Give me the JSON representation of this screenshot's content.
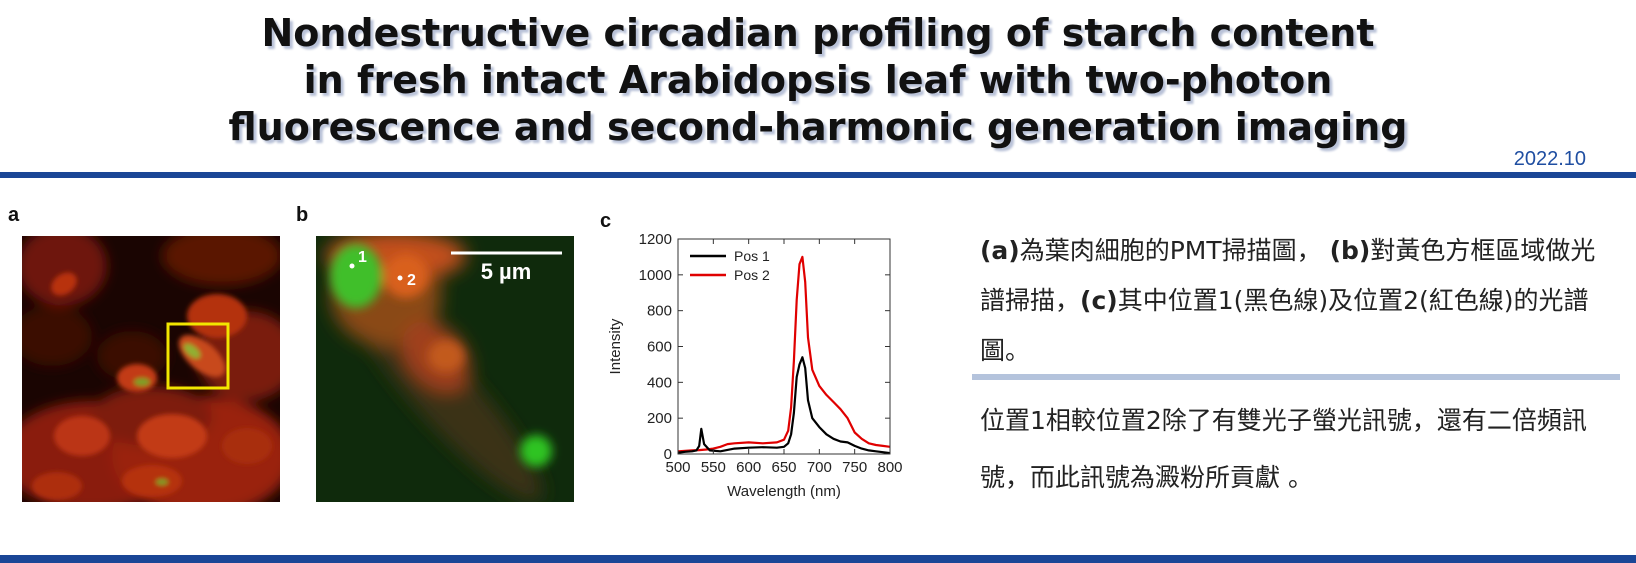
{
  "title": {
    "line1": "Nondestructive circadian profiling of starch content",
    "line2": "in fresh intact Arabidopsis leaf with two-photon",
    "line3": "fluorescence and second-harmonic generation imaging"
  },
  "date": "2022.10",
  "panels": {
    "a": {
      "label": "a"
    },
    "b": {
      "label": "b",
      "point1": "1",
      "point2": "2",
      "scale_bar": "5 µm"
    },
    "c": {
      "label": "c"
    }
  },
  "colors": {
    "accent": "#1a4696",
    "separator": "#b4c3dc",
    "box": "#f2e600"
  },
  "chart_data": {
    "type": "line",
    "xlabel": "Wavelength (nm)",
    "ylabel": "Intensity",
    "xlim": [
      500,
      800
    ],
    "ylim": [
      0,
      1200
    ],
    "xticks": [
      "500",
      "550",
      "600",
      "650",
      "700",
      "750",
      "800"
    ],
    "yticks": [
      "0",
      "200",
      "400",
      "600",
      "800",
      "1000",
      "1200"
    ],
    "legend_position": "top-left",
    "series": [
      {
        "name": "Pos 1",
        "color": "#000000",
        "x": [
          500,
          510,
          520,
          526,
          530,
          533,
          537,
          545,
          560,
          580,
          600,
          620,
          640,
          650,
          656,
          660,
          664,
          668,
          672,
          676,
          680,
          684,
          690,
          700,
          710,
          720,
          730,
          740,
          750,
          760,
          770,
          780,
          790,
          800
        ],
        "y": [
          8,
          12,
          15,
          20,
          45,
          140,
          55,
          20,
          15,
          30,
          35,
          38,
          35,
          40,
          60,
          110,
          230,
          430,
          500,
          540,
          480,
          300,
          200,
          150,
          110,
          85,
          70,
          65,
          45,
          30,
          20,
          15,
          10,
          5
        ]
      },
      {
        "name": "Pos 2",
        "color": "#e00000",
        "x": [
          500,
          510,
          520,
          530,
          540,
          550,
          560,
          570,
          580,
          600,
          620,
          640,
          650,
          656,
          660,
          664,
          668,
          672,
          676,
          680,
          684,
          690,
          700,
          710,
          720,
          730,
          740,
          750,
          760,
          770,
          780,
          790,
          800
        ],
        "y": [
          15,
          18,
          20,
          22,
          25,
          30,
          40,
          55,
          60,
          65,
          60,
          65,
          80,
          130,
          260,
          520,
          860,
          1060,
          1100,
          960,
          650,
          470,
          380,
          330,
          290,
          250,
          200,
          120,
          85,
          60,
          50,
          45,
          40
        ]
      }
    ]
  },
  "description": {
    "p1_a_label": "(a)",
    "p1_a_text": "為葉肉細胞的PMT掃描圖，",
    "p1_b_label": "(b)",
    "p1_b_text": "對黃色方框區域做光譜掃描，",
    "p1_c_label": "(c)",
    "p1_c_text": "其中位置1(黑色線)及位置2(紅色線)的光譜圖。",
    "p2": "位置1相較位置2除了有雙光子螢光訊號，還有二倍頻訊號，而此訊號為澱粉所貢獻 。"
  }
}
